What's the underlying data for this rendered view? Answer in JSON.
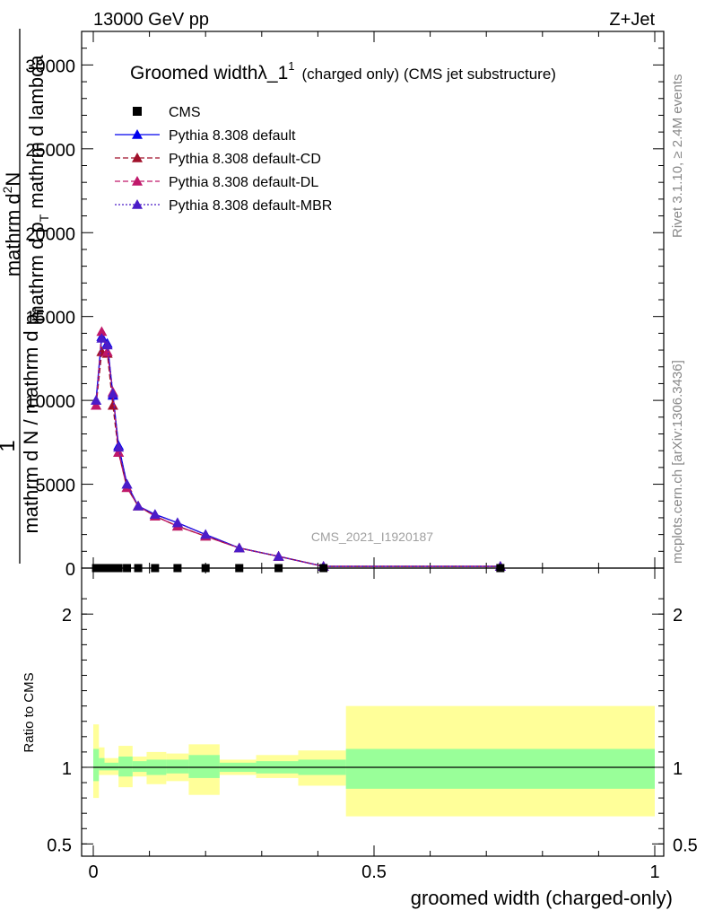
{
  "header": {
    "left": "13000 GeV pp",
    "right": "Z+Jet"
  },
  "side_labels": {
    "rivet": "Rivet 3.1.10, ≥ 2.4M events",
    "mcplots": "mcplots.cern.ch [arXiv:1306.3436]"
  },
  "watermark": "CMS_2021_I1920187",
  "chart_data": [
    {
      "type": "line",
      "title_main": "Groomed widthλ_1",
      "title_sup": "1",
      "title_sub": "(charged only) (CMS jet substructure)",
      "ylabel": {
        "line1": "1",
        "num": "mathrm d",
        "num_sup": "2",
        "num_rest": "N",
        "den": "mathrm d p",
        "den_sub": "T",
        "den_rest": " mathrm d lambda",
        "frac_left": "mathrm d N / mathrm d p",
        "frac_left_sub": "T"
      },
      "xlim": [
        0,
        1
      ],
      "ylim": [
        0,
        32000
      ],
      "yticks": [
        {
          "v": 0,
          "label": "0"
        },
        {
          "v": 5000,
          "label": "5000"
        },
        {
          "v": 10000,
          "label": "10000"
        },
        {
          "v": 15000,
          "label": "15000"
        },
        {
          "v": 20000,
          "label": "20000"
        },
        {
          "v": 25000,
          "label": "25000"
        },
        {
          "v": 30000,
          "label": "30000"
        }
      ],
      "legend_placement": "top-left",
      "series": [
        {
          "name": "CMS",
          "color": "#000000",
          "marker": "square",
          "line": "none",
          "x": [
            0.005,
            0.015,
            0.025,
            0.035,
            0.045,
            0.06,
            0.08,
            0.11,
            0.15,
            0.2,
            0.26,
            0.33,
            0.41,
            0.725
          ],
          "y": [
            0,
            0,
            0,
            0,
            0,
            0,
            0,
            0,
            0,
            0,
            0,
            0,
            0,
            0
          ]
        },
        {
          "name": "Pythia 8.308 default",
          "color": "#0000ee",
          "marker": "triangle",
          "line": "solid",
          "x": [
            0.005,
            0.015,
            0.025,
            0.035,
            0.045,
            0.06,
            0.08,
            0.11,
            0.15,
            0.2,
            0.26,
            0.33,
            0.41,
            0.725
          ],
          "y": [
            10000,
            13800,
            13400,
            10300,
            7300,
            5000,
            3700,
            3200,
            2700,
            2000,
            1200,
            700,
            100,
            100
          ]
        },
        {
          "name": "Pythia 8.308 default-CD",
          "color": "#a0102a",
          "marker": "triangle",
          "line": "dashed",
          "x": [
            0.005,
            0.015,
            0.025,
            0.035,
            0.045,
            0.06,
            0.08,
            0.11,
            0.15,
            0.2,
            0.26,
            0.33,
            0.41,
            0.725
          ],
          "y": [
            9700,
            12900,
            12800,
            9700,
            6900,
            4800,
            3700,
            3100,
            2500,
            1900,
            1200,
            700,
            100,
            100
          ]
        },
        {
          "name": "Pythia 8.308 default-DL",
          "color": "#c0186a",
          "marker": "triangle",
          "line": "dashed",
          "x": [
            0.005,
            0.015,
            0.025,
            0.035,
            0.045,
            0.06,
            0.08,
            0.11,
            0.15,
            0.2,
            0.26,
            0.33,
            0.41,
            0.725
          ],
          "y": [
            9700,
            14100,
            12900,
            10500,
            6900,
            4800,
            3700,
            3100,
            2500,
            1900,
            1200,
            700,
            100,
            100
          ]
        },
        {
          "name": "Pythia 8.308 default-MBR",
          "color": "#4b1cc8",
          "marker": "triangle",
          "line": "dotted",
          "x": [
            0.005,
            0.015,
            0.025,
            0.035,
            0.045,
            0.06,
            0.08,
            0.11,
            0.15,
            0.2,
            0.26,
            0.33,
            0.41,
            0.725
          ],
          "y": [
            10000,
            13700,
            13300,
            10400,
            7200,
            5000,
            3700,
            3200,
            2700,
            2000,
            1200,
            700,
            100,
            100
          ]
        }
      ]
    },
    {
      "type": "area",
      "ylabel": "Ratio to CMS",
      "xlabel": "groomed width (charged-only)",
      "xlim": [
        0,
        1
      ],
      "ylim": [
        0.42,
        2.3
      ],
      "xticks": [
        {
          "v": 0,
          "label": "0"
        },
        {
          "v": 0.5,
          "label": "0.5"
        },
        {
          "v": 1,
          "label": "1"
        }
      ],
      "yticks": [
        {
          "v": 0.5,
          "label": "0.5"
        },
        {
          "v": 1,
          "label": "1"
        },
        {
          "v": 2,
          "label": "2"
        }
      ],
      "reference": 1,
      "bands": [
        {
          "x0": 0.0,
          "x1": 0.01,
          "stat": [
            0.91,
            1.12
          ],
          "total": [
            0.8,
            1.28
          ]
        },
        {
          "x0": 0.01,
          "x1": 0.02,
          "stat": [
            0.98,
            1.06
          ],
          "total": [
            0.95,
            1.13
          ]
        },
        {
          "x0": 0.02,
          "x1": 0.045,
          "stat": [
            0.98,
            1.03
          ],
          "total": [
            0.95,
            1.06
          ]
        },
        {
          "x0": 0.045,
          "x1": 0.07,
          "stat": [
            0.94,
            1.07
          ],
          "total": [
            0.87,
            1.14
          ]
        },
        {
          "x0": 0.07,
          "x1": 0.095,
          "stat": [
            0.97,
            1.04
          ],
          "total": [
            0.94,
            1.07
          ]
        },
        {
          "x0": 0.095,
          "x1": 0.13,
          "stat": [
            0.95,
            1.05
          ],
          "total": [
            0.89,
            1.1
          ]
        },
        {
          "x0": 0.13,
          "x1": 0.17,
          "stat": [
            0.96,
            1.05
          ],
          "total": [
            0.91,
            1.09
          ]
        },
        {
          "x0": 0.17,
          "x1": 0.225,
          "stat": [
            0.93,
            1.08
          ],
          "total": [
            0.82,
            1.15
          ]
        },
        {
          "x0": 0.225,
          "x1": 0.29,
          "stat": [
            0.97,
            1.03
          ],
          "total": [
            0.95,
            1.05
          ]
        },
        {
          "x0": 0.29,
          "x1": 0.365,
          "stat": [
            0.96,
            1.04
          ],
          "total": [
            0.93,
            1.08
          ]
        },
        {
          "x0": 0.365,
          "x1": 0.45,
          "stat": [
            0.95,
            1.05
          ],
          "total": [
            0.88,
            1.11
          ]
        },
        {
          "x0": 0.45,
          "x1": 1.0,
          "stat": [
            0.86,
            1.12
          ],
          "total": [
            0.68,
            1.4
          ]
        }
      ],
      "stat_color": "#99ff99",
      "total_color": "#ffff99"
    }
  ]
}
